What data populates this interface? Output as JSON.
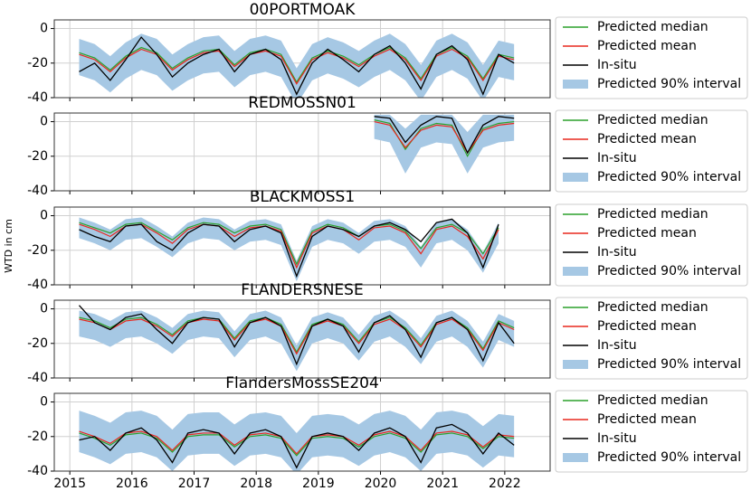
{
  "chart_data": [
    {
      "type": "line",
      "title": "00PORTMOAK",
      "xlim": [
        2014.75,
        2022.73
      ],
      "xticks": [
        2015,
        2016,
        2017,
        2018,
        2019,
        2020,
        2021,
        2022
      ],
      "ylim": [
        -40,
        5
      ],
      "yticks": [
        -40,
        -20,
        0
      ],
      "grid": true,
      "x": [
        2015.15,
        2015.4,
        2015.65,
        2015.9,
        2016.15,
        2016.4,
        2016.65,
        2016.9,
        2017.15,
        2017.4,
        2017.65,
        2017.9,
        2018.15,
        2018.4,
        2018.65,
        2018.9,
        2019.15,
        2019.4,
        2019.65,
        2019.9,
        2020.15,
        2020.4,
        2020.65,
        2020.9,
        2021.15,
        2021.4,
        2021.65,
        2021.9,
        2022.15
      ],
      "band": {
        "name": "Predicted 90% interval",
        "color": "#a6c8e4",
        "lower": [
          -27,
          -30,
          -37,
          -29,
          -24,
          -27,
          -36,
          -30,
          -26,
          -25,
          -34,
          -27,
          -25,
          -28,
          -44,
          -30,
          -26,
          -29,
          -34,
          -28,
          -24,
          -30,
          -42,
          -28,
          -24,
          -29,
          -42,
          -28,
          -30
        ],
        "upper": [
          -6,
          -9,
          -16,
          -8,
          -3,
          -6,
          -15,
          -9,
          -5,
          -4,
          -13,
          -6,
          -4,
          -7,
          -23,
          -9,
          -5,
          -8,
          -13,
          -7,
          -3,
          -9,
          -21,
          -7,
          -3,
          -8,
          -21,
          -7,
          -9
        ]
      },
      "series": [
        {
          "name": "Predicted median",
          "color": "#2ca02c",
          "values": [
            -14,
            -17,
            -24,
            -16,
            -11,
            -14,
            -23,
            -17,
            -13,
            -12,
            -21,
            -14,
            -12,
            -15,
            -31,
            -17,
            -13,
            -16,
            -21,
            -15,
            -11,
            -17,
            -29,
            -15,
            -11,
            -16,
            -29,
            -15,
            -17
          ]
        },
        {
          "name": "Predicted mean",
          "color": "#e8281f",
          "values": [
            -15,
            -18,
            -25,
            -17,
            -12,
            -15,
            -24,
            -18,
            -14,
            -13,
            -22,
            -15,
            -13,
            -16,
            -32,
            -18,
            -14,
            -17,
            -22,
            -16,
            -12,
            -18,
            -30,
            -16,
            -12,
            -17,
            -30,
            -16,
            -18
          ]
        },
        {
          "name": "In-situ",
          "color": "#000000",
          "values": [
            -25,
            -20,
            -30,
            -18,
            -5,
            -15,
            -28,
            -20,
            -15,
            -12,
            -25,
            -15,
            -12,
            -18,
            -38,
            -20,
            -12,
            -18,
            -25,
            -15,
            -10,
            -20,
            -35,
            -15,
            -10,
            -18,
            -38,
            -15,
            -20
          ]
        }
      ]
    },
    {
      "type": "line",
      "title": "REDMOSSN01",
      "xlim": [
        2014.75,
        2022.73
      ],
      "xticks": [
        2015,
        2016,
        2017,
        2018,
        2019,
        2020,
        2021,
        2022
      ],
      "ylim": [
        -40,
        5
      ],
      "yticks": [
        -40,
        -20,
        0
      ],
      "grid": true,
      "x": [
        2019.9,
        2020.15,
        2020.4,
        2020.65,
        2020.9,
        2021.15,
        2021.4,
        2021.65,
        2021.9,
        2022.15
      ],
      "band": {
        "name": "Predicted 90% interval",
        "color": "#a6c8e4",
        "lower": [
          -10,
          -12,
          -30,
          -15,
          -12,
          -13,
          -30,
          -15,
          -12,
          -11
        ],
        "upper": [
          4,
          4,
          -4,
          4,
          4,
          4,
          -6,
          4,
          4,
          4
        ]
      },
      "series": [
        {
          "name": "Predicted median",
          "color": "#2ca02c",
          "values": [
            1,
            -1,
            -16,
            -4,
            -1,
            -2,
            -20,
            -4,
            -1,
            0
          ]
        },
        {
          "name": "Predicted mean",
          "color": "#e8281f",
          "values": [
            0,
            -2,
            -15,
            -5,
            -2,
            -3,
            -18,
            -5,
            -2,
            -1
          ]
        },
        {
          "name": "In-situ",
          "color": "#000000",
          "values": [
            3,
            2,
            -12,
            -2,
            3,
            2,
            -18,
            -2,
            3,
            2
          ]
        }
      ]
    },
    {
      "type": "line",
      "title": "BLACKMOSS1",
      "ylabel": "WTD in cm",
      "xlim": [
        2014.75,
        2022.73
      ],
      "xticks": [
        2015,
        2016,
        2017,
        2018,
        2019,
        2020,
        2021,
        2022
      ],
      "ylim": [
        -40,
        5
      ],
      "yticks": [
        -40,
        -20,
        0
      ],
      "grid": true,
      "x": [
        2015.15,
        2015.4,
        2015.65,
        2015.9,
        2016.15,
        2016.4,
        2016.65,
        2016.9,
        2017.15,
        2017.4,
        2017.65,
        2017.9,
        2018.15,
        2018.4,
        2018.65,
        2018.9,
        2019.15,
        2019.4,
        2019.65,
        2019.9,
        2020.15,
        2020.4,
        2020.65,
        2020.9,
        2021.15,
        2021.4,
        2021.65,
        2021.9,
        2022.15
      ],
      "band": {
        "name": "Predicted 90% interval",
        "color": "#a6c8e4",
        "lower": [
          -13,
          -16,
          -20,
          -14,
          -13,
          -18,
          -24,
          -16,
          -13,
          -14,
          -20,
          -15,
          -14,
          -17,
          -38,
          -18,
          -14,
          -16,
          -22,
          -15,
          -14,
          -18,
          -30,
          -16,
          -14,
          -20,
          -33,
          -16,
          null
        ],
        "upper": [
          -1,
          -4,
          -8,
          -2,
          -1,
          -6,
          -12,
          -4,
          -1,
          -2,
          -8,
          -3,
          -2,
          -5,
          -26,
          -6,
          -2,
          -4,
          -10,
          -3,
          -2,
          -6,
          -18,
          -4,
          -2,
          -8,
          -21,
          -4,
          null
        ]
      },
      "series": [
        {
          "name": "Predicted median",
          "color": "#2ca02c",
          "values": [
            -4,
            -7,
            -10,
            -5,
            -4,
            -9,
            -14,
            -7,
            -4,
            -5,
            -10,
            -6,
            -5,
            -8,
            -28,
            -9,
            -5,
            -7,
            -12,
            -6,
            -5,
            -9,
            -19,
            -7,
            -5,
            -10,
            -22,
            -7,
            null
          ]
        },
        {
          "name": "Predicted mean",
          "color": "#e8281f",
          "values": [
            -5,
            -8,
            -12,
            -6,
            -5,
            -10,
            -16,
            -8,
            -5,
            -6,
            -12,
            -7,
            -6,
            -9,
            -30,
            -10,
            -6,
            -8,
            -14,
            -7,
            -6,
            -10,
            -22,
            -8,
            -6,
            -12,
            -25,
            -8,
            null
          ]
        },
        {
          "name": "In-situ",
          "color": "#000000",
          "values": [
            -8,
            -12,
            -15,
            -6,
            -5,
            -15,
            -20,
            -10,
            -5,
            -6,
            -15,
            -8,
            -6,
            -10,
            -35,
            -12,
            -6,
            -8,
            -12,
            -6,
            -4,
            -8,
            -15,
            -4,
            -2,
            -10,
            -30,
            -5,
            null
          ]
        }
      ]
    },
    {
      "type": "line",
      "title": "FLANDERSNESE",
      "xlim": [
        2014.75,
        2022.73
      ],
      "xticks": [
        2015,
        2016,
        2017,
        2018,
        2019,
        2020,
        2021,
        2022
      ],
      "ylim": [
        -40,
        5
      ],
      "yticks": [
        -40,
        -20,
        0
      ],
      "grid": true,
      "x": [
        2015.15,
        2015.4,
        2015.65,
        2015.9,
        2016.15,
        2016.4,
        2016.65,
        2016.9,
        2017.15,
        2017.4,
        2017.65,
        2017.9,
        2018.15,
        2018.4,
        2018.65,
        2018.9,
        2019.15,
        2019.4,
        2019.65,
        2019.9,
        2020.15,
        2020.4,
        2020.65,
        2020.9,
        2021.15,
        2021.4,
        2021.65,
        2021.9,
        2022.15
      ],
      "band": {
        "name": "Predicted 90% interval",
        "color": "#a6c8e4",
        "lower": [
          -16,
          -18,
          -22,
          -17,
          -16,
          -20,
          -26,
          -18,
          -16,
          -17,
          -28,
          -18,
          -16,
          -20,
          -36,
          -20,
          -17,
          -20,
          -30,
          -19,
          -16,
          -22,
          -32,
          -19,
          -16,
          -22,
          -34,
          -18,
          -22
        ],
        "upper": [
          -1,
          -3,
          -7,
          -2,
          -1,
          -5,
          -11,
          -3,
          -1,
          -2,
          -13,
          -3,
          -1,
          -5,
          -21,
          -5,
          -2,
          -5,
          -15,
          -4,
          -1,
          -7,
          -17,
          -4,
          -1,
          -7,
          -19,
          -3,
          -7
        ]
      },
      "series": [
        {
          "name": "Predicted median",
          "color": "#2ca02c",
          "values": [
            -5,
            -7,
            -11,
            -6,
            -5,
            -9,
            -15,
            -7,
            -5,
            -6,
            -17,
            -7,
            -5,
            -9,
            -25,
            -9,
            -6,
            -9,
            -19,
            -8,
            -5,
            -11,
            -21,
            -8,
            -5,
            -11,
            -23,
            -7,
            -11
          ]
        },
        {
          "name": "Predicted mean",
          "color": "#e8281f",
          "values": [
            -6,
            -8,
            -12,
            -7,
            -6,
            -10,
            -16,
            -8,
            -6,
            -7,
            -18,
            -8,
            -6,
            -10,
            -26,
            -10,
            -7,
            -10,
            -20,
            -9,
            -6,
            -12,
            -22,
            -9,
            -6,
            -12,
            -24,
            -8,
            -12
          ]
        },
        {
          "name": "In-situ",
          "color": "#000000",
          "values": [
            2,
            -8,
            -12,
            -5,
            -3,
            -12,
            -20,
            -8,
            -5,
            -6,
            -22,
            -8,
            -5,
            -10,
            -32,
            -10,
            -6,
            -10,
            -25,
            -8,
            -4,
            -12,
            -28,
            -8,
            -5,
            -12,
            -30,
            -8,
            -20
          ]
        }
      ]
    },
    {
      "type": "line",
      "title": "FlandersMossSE204",
      "xlim": [
        2014.75,
        2022.73
      ],
      "xticks": [
        2015,
        2016,
        2017,
        2018,
        2019,
        2020,
        2021,
        2022
      ],
      "ylim": [
        -40,
        5
      ],
      "yticks": [
        -40,
        -20,
        0
      ],
      "grid": true,
      "x": [
        2015.15,
        2015.4,
        2015.65,
        2015.9,
        2016.15,
        2016.4,
        2016.65,
        2016.9,
        2017.15,
        2017.4,
        2017.65,
        2017.9,
        2018.15,
        2018.4,
        2018.65,
        2018.9,
        2019.15,
        2019.4,
        2019.65,
        2019.9,
        2020.15,
        2020.4,
        2020.65,
        2020.9,
        2021.15,
        2021.4,
        2021.65,
        2021.9,
        2022.15
      ],
      "band": {
        "name": "Predicted 90% interval",
        "color": "#a6c8e4",
        "lower": [
          -29,
          -32,
          -36,
          -30,
          -29,
          -32,
          -40,
          -31,
          -30,
          -30,
          -37,
          -31,
          -30,
          -32,
          -42,
          -32,
          -31,
          -32,
          -37,
          -31,
          -29,
          -32,
          -40,
          -30,
          -29,
          -31,
          -38,
          -31,
          -32
        ],
        "upper": [
          -5,
          -8,
          -12,
          -6,
          -5,
          -8,
          -16,
          -7,
          -6,
          -6,
          -13,
          -7,
          -6,
          -8,
          -18,
          -8,
          -7,
          -8,
          -13,
          -7,
          -5,
          -8,
          -16,
          -6,
          -5,
          -7,
          -14,
          -7,
          -8
        ]
      },
      "series": [
        {
          "name": "Predicted median",
          "color": "#2ca02c",
          "values": [
            -18,
            -21,
            -25,
            -19,
            -18,
            -21,
            -29,
            -20,
            -19,
            -19,
            -26,
            -20,
            -19,
            -21,
            -31,
            -21,
            -20,
            -21,
            -26,
            -20,
            -18,
            -21,
            -29,
            -19,
            -18,
            -20,
            -27,
            -20,
            -21
          ]
        },
        {
          "name": "Predicted mean",
          "color": "#e8281f",
          "values": [
            -17,
            -20,
            -24,
            -18,
            -17,
            -20,
            -28,
            -19,
            -18,
            -18,
            -25,
            -19,
            -18,
            -20,
            -30,
            -20,
            -19,
            -20,
            -25,
            -19,
            -17,
            -20,
            -28,
            -18,
            -17,
            -19,
            -26,
            -19,
            -20
          ]
        },
        {
          "name": "In-situ",
          "color": "#000000",
          "values": [
            -22,
            -20,
            -28,
            -18,
            -15,
            -22,
            -35,
            -18,
            -16,
            -18,
            -30,
            -18,
            -16,
            -20,
            -38,
            -20,
            -18,
            -20,
            -28,
            -18,
            -15,
            -20,
            -35,
            -15,
            -13,
            -18,
            -30,
            -18,
            -25
          ]
        }
      ]
    }
  ]
}
